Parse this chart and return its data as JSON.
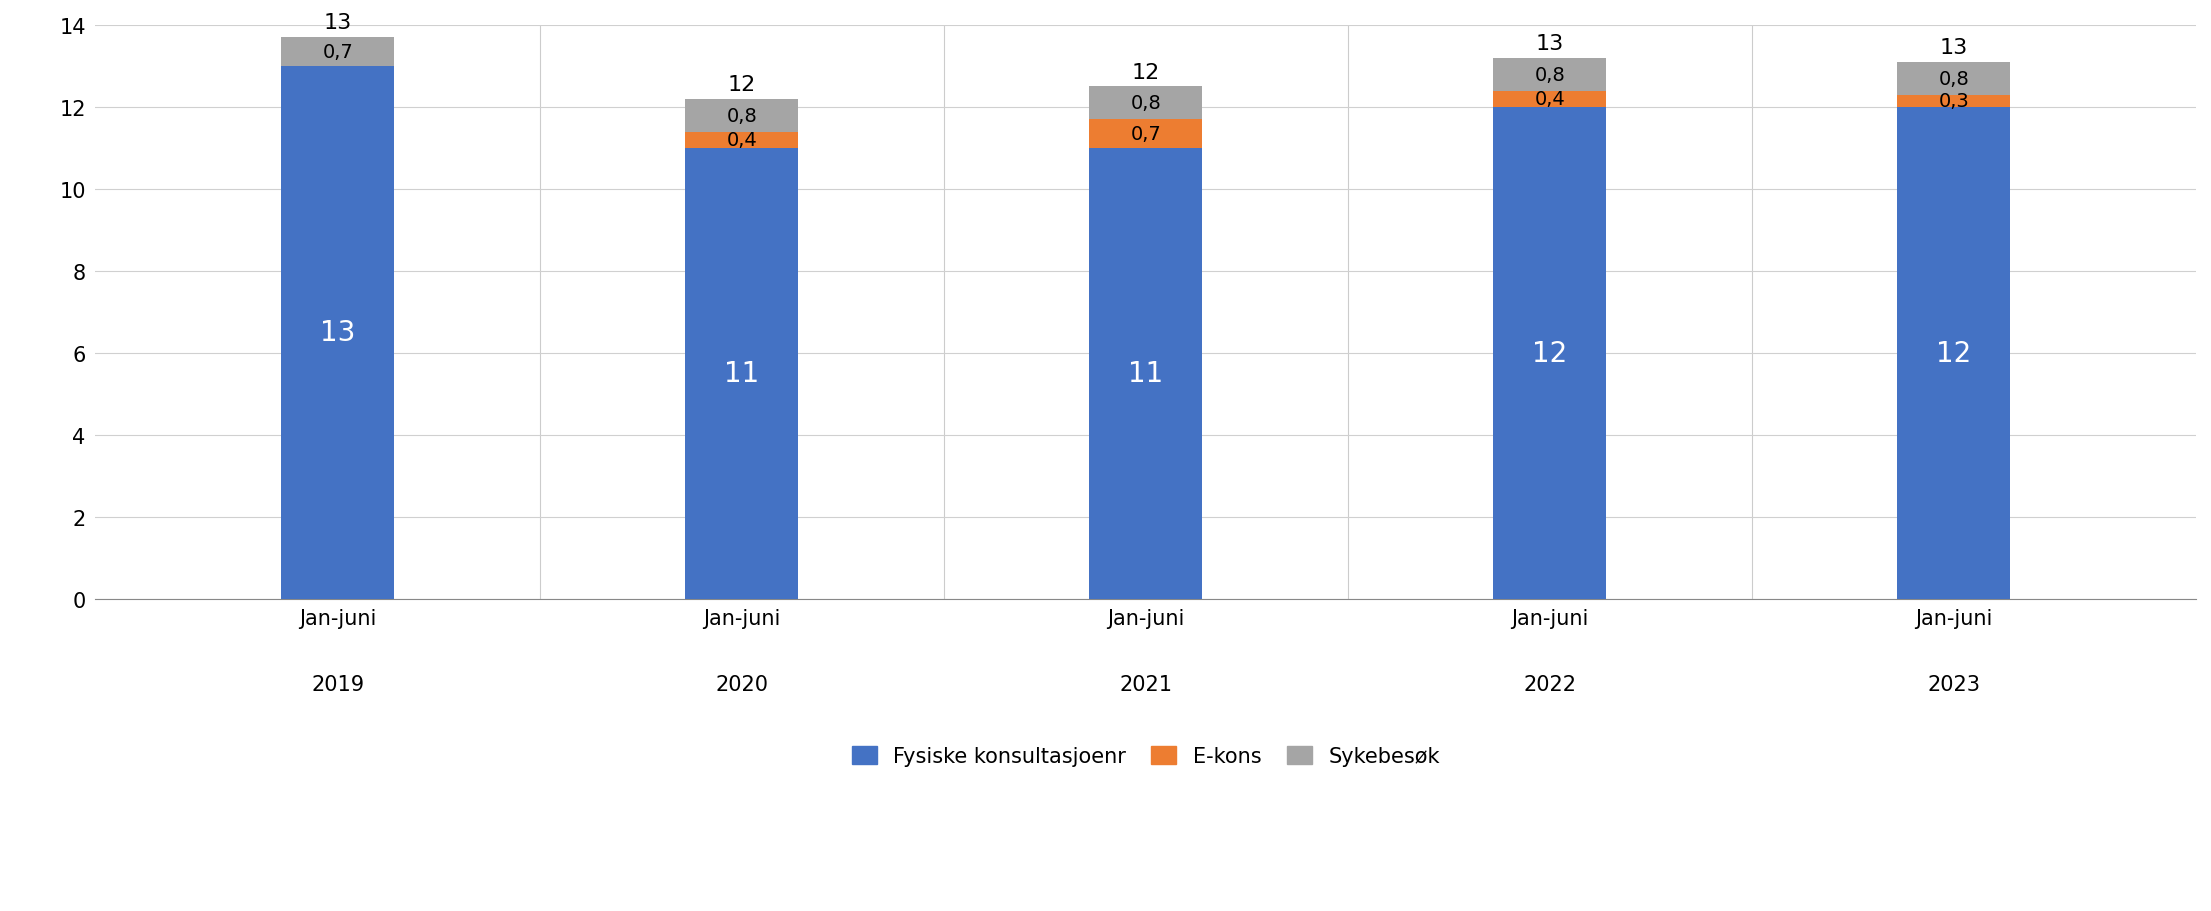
{
  "categories": [
    "Jan-juni\n\n2019",
    "Jan-juni\n\n2020",
    "Jan-juni\n\n2021",
    "Jan-juni\n\n2022",
    "Jan-juni\n\n2023"
  ],
  "fysiske": [
    13,
    11,
    11,
    12,
    12
  ],
  "ekons": [
    0,
    0.4,
    0.7,
    0.4,
    0.3
  ],
  "sykebesok": [
    0.7,
    0.8,
    0.8,
    0.8,
    0.8
  ],
  "totals": [
    13,
    12,
    12,
    13,
    13
  ],
  "fysiske_labels": [
    "13",
    "11",
    "11",
    "12",
    "12"
  ],
  "ekons_labels": [
    "",
    "0,4",
    "0,7",
    "0,4",
    "0,3"
  ],
  "sykebesok_labels": [
    "0,7",
    "0,8",
    "0,8",
    "0,8",
    "0,8"
  ],
  "color_fysiske": "#4472C4",
  "color_ekons": "#ED7D31",
  "color_sykebesok": "#A5A5A5",
  "legend_labels": [
    "Fysiske konsultasjoenr",
    "E-kons",
    "Sykebesøk"
  ],
  "ylim": [
    0,
    14
  ],
  "yticks": [
    0,
    2,
    4,
    6,
    8,
    10,
    12,
    14
  ],
  "background_color": "#ffffff",
  "bar_width": 0.28,
  "figsize": [
    22.11,
    9.12
  ],
  "dpi": 100
}
